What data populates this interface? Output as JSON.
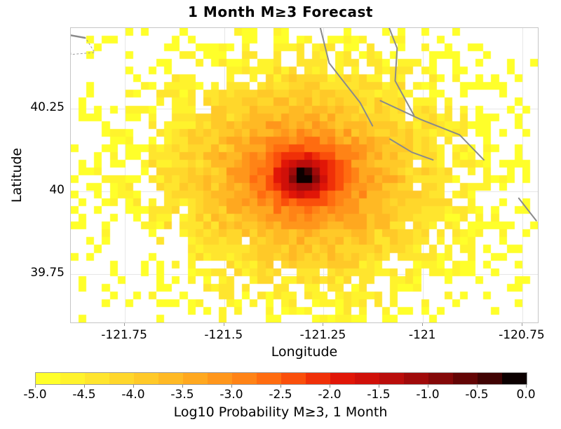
{
  "title": "1 Month M≥3 Forecast",
  "axes": {
    "xlabel": "Longitude",
    "ylabel": "Latitude",
    "xlim": [
      -121.886,
      -120.711
    ],
    "ylim": [
      39.604,
      40.495
    ],
    "xticks": [
      {
        "v": -121.75,
        "label": "-121.75"
      },
      {
        "v": -121.5,
        "label": "-121.5"
      },
      {
        "v": -121.25,
        "label": "-121.25"
      },
      {
        "v": -121,
        "label": "-121"
      },
      {
        "v": -120.75,
        "label": "-120.75"
      }
    ],
    "yticks": [
      {
        "v": 40.25,
        "label": "40.25"
      },
      {
        "v": 40,
        "label": "40"
      },
      {
        "v": 39.75,
        "label": "39.75"
      }
    ],
    "grid_color": "#e7e7e7",
    "frame_color": "#c6c6c6"
  },
  "colorbar": {
    "label": "Log10 Probability M≥3, 1 Month",
    "min": -5,
    "max": 0,
    "ticks": [
      {
        "v": -5,
        "label": "-5.0"
      },
      {
        "v": -4.5,
        "label": "-4.5"
      },
      {
        "v": -4,
        "label": "-4.0"
      },
      {
        "v": -3.5,
        "label": "-3.5"
      },
      {
        "v": -3,
        "label": "-3.0"
      },
      {
        "v": -2.5,
        "label": "-2.5"
      },
      {
        "v": -2,
        "label": "-2.0"
      },
      {
        "v": -1.5,
        "label": "-1.5"
      },
      {
        "v": -1,
        "label": "-1.0"
      },
      {
        "v": -0.5,
        "label": "-0.5"
      },
      {
        "v": 0,
        "label": "0.0"
      }
    ],
    "palette": [
      "#FFFF2A",
      "#FFF32C",
      "#FFE52E",
      "#FFD72B",
      "#FFC928",
      "#FFB924",
      "#FFA81F",
      "#FF961B",
      "#FF8316",
      "#FF6C10",
      "#FA4F0B",
      "#F03008",
      "#E11607",
      "#D01009",
      "#BA0D0B",
      "#A00A0A",
      "#840808",
      "#630505",
      "#400303",
      "#0C0000"
    ]
  },
  "chart_data": {
    "type": "heatmap",
    "title": "1 Month M≥3 Forecast",
    "xlabel": "Longitude",
    "ylabel": "Latitude",
    "value_label": "Log10 Probability M≥3, 1 Month",
    "value_range": [
      -5,
      0
    ],
    "xlim": [
      -121.886,
      -120.711
    ],
    "ylim": [
      39.604,
      40.495
    ],
    "grid": {
      "cols": 60,
      "rows": 38,
      "cell_deg": 0.02
    },
    "peak": {
      "lon": -121.3,
      "lat": 40.045,
      "value": -0.2
    },
    "extent_deg": {
      "east_west": 0.57,
      "north_south": 0.44
    },
    "description": "Log10 earthquake probability per cell; radially decaying from near-black peak (≈ -0.2) at (-121.30, 40.045) through red/orange/yellow to sparse speckled yellow cells (≈ -5) at the rim; white outside forecast region.",
    "model": {
      "decay": 3.35,
      "aspect": 1.3,
      "noise": 0.6,
      "solid_below": -4.15,
      "vanish_at": -5.45
    },
    "overlays": {
      "fault_line_color": "#8a8a8a",
      "fault_lines": [
        [
          [
            -121.259,
            40.499
          ],
          [
            -121.236,
            40.389
          ],
          [
            -121.158,
            40.269
          ],
          [
            -121.127,
            40.199
          ]
        ],
        [
          [
            -121.086,
            40.499
          ],
          [
            -121.065,
            40.434
          ],
          [
            -121.07,
            40.335
          ],
          [
            -121.046,
            40.282
          ],
          [
            -121.023,
            40.231
          ]
        ],
        [
          [
            -121.107,
            40.275
          ],
          [
            -121.005,
            40.218
          ],
          [
            -120.908,
            40.172
          ],
          [
            -120.847,
            40.096
          ]
        ],
        [
          [
            -121.083,
            40.159
          ],
          [
            -121.028,
            40.119
          ],
          [
            -120.975,
            40.096
          ]
        ],
        [
          [
            -120.759,
            39.98
          ],
          [
            -120.715,
            39.912
          ]
        ]
      ],
      "boundary_polygon": [
        [
          -121.891,
          40.474
        ],
        [
          -121.849,
          40.465
        ],
        [
          -121.826,
          40.421
        ],
        [
          -121.886,
          40.415
        ]
      ]
    }
  }
}
